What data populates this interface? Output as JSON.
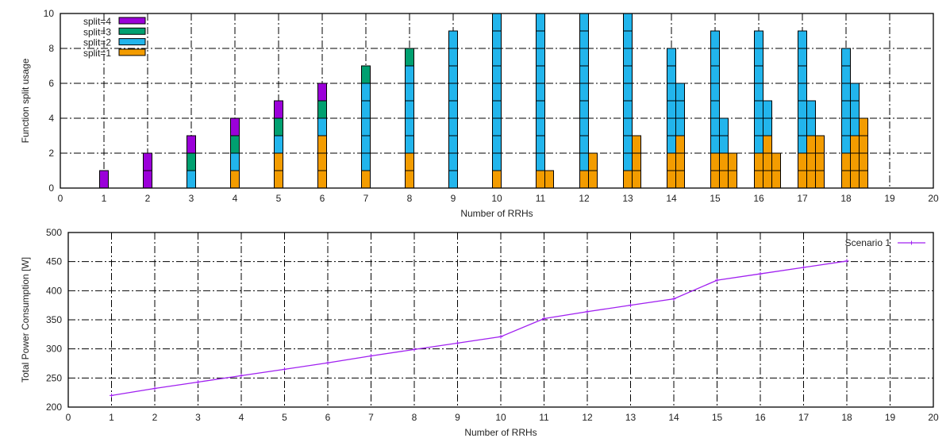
{
  "chart_data": [
    {
      "type": "bar",
      "stacked": true,
      "title": "",
      "xlabel": "Number of RRHs",
      "ylabel": "Function split usage",
      "xlim": [
        0,
        20
      ],
      "ylim": [
        0,
        10
      ],
      "xticks": [
        0,
        1,
        2,
        3,
        4,
        5,
        6,
        7,
        8,
        9,
        10,
        11,
        12,
        13,
        14,
        15,
        16,
        17,
        18,
        19,
        20
      ],
      "yticks": [
        0,
        2,
        4,
        6,
        8,
        10
      ],
      "grid": true,
      "legend_position": "top-left",
      "series_order": [
        "split=1",
        "split=2",
        "split=3",
        "split=4"
      ],
      "legend": [
        "split=4",
        "split=3",
        "split=2",
        "split=1"
      ],
      "colors": {
        "split=1": "#f39c00",
        "split=2": "#22b5ec",
        "split=3": "#00a070",
        "split=4": "#9b00d9"
      },
      "note_columns": "each group lists stacked columns as [split=1, split=2, split=3, split=4] counts",
      "groups": [
        {
          "x": 1,
          "columns": [
            [
              0,
              0,
              0,
              1
            ]
          ]
        },
        {
          "x": 2,
          "columns": [
            [
              0,
              0,
              0,
              2
            ]
          ]
        },
        {
          "x": 3,
          "columns": [
            [
              0,
              1,
              1,
              1
            ]
          ]
        },
        {
          "x": 4,
          "columns": [
            [
              1,
              1,
              1,
              1
            ]
          ]
        },
        {
          "x": 5,
          "columns": [
            [
              2,
              1,
              1,
              1
            ]
          ]
        },
        {
          "x": 6,
          "columns": [
            [
              3,
              1,
              1,
              1
            ]
          ]
        },
        {
          "x": 7,
          "columns": [
            [
              1,
              5,
              1,
              0
            ]
          ]
        },
        {
          "x": 8,
          "columns": [
            [
              2,
              5,
              1,
              0
            ]
          ]
        },
        {
          "x": 9,
          "columns": [
            [
              0,
              9,
              0,
              0
            ]
          ]
        },
        {
          "x": 10,
          "columns": [
            [
              1,
              9,
              0,
              0
            ]
          ]
        },
        {
          "x": 11,
          "columns": [
            [
              1,
              9,
              0,
              0
            ],
            [
              1,
              0,
              0,
              0
            ]
          ]
        },
        {
          "x": 12,
          "columns": [
            [
              1,
              9,
              0,
              0
            ],
            [
              2,
              0,
              0,
              0
            ]
          ]
        },
        {
          "x": 13,
          "columns": [
            [
              1,
              9,
              0,
              0
            ],
            [
              3,
              0,
              0,
              0
            ]
          ]
        },
        {
          "x": 14,
          "columns": [
            [
              2,
              6,
              0,
              0
            ],
            [
              3,
              3,
              0,
              0
            ]
          ]
        },
        {
          "x": 15,
          "columns": [
            [
              2,
              7,
              0,
              0
            ],
            [
              2,
              2,
              0,
              0
            ],
            [
              2,
              0,
              0,
              0
            ]
          ]
        },
        {
          "x": 16,
          "columns": [
            [
              2,
              7,
              0,
              0
            ],
            [
              3,
              2,
              0,
              0
            ],
            [
              2,
              0,
              0,
              0
            ]
          ]
        },
        {
          "x": 17,
          "columns": [
            [
              2,
              7,
              0,
              0
            ],
            [
              3,
              2,
              0,
              0
            ],
            [
              3,
              0,
              0,
              0
            ]
          ]
        },
        {
          "x": 18,
          "columns": [
            [
              2,
              6,
              0,
              0
            ],
            [
              3,
              3,
              0,
              0
            ],
            [
              4,
              0,
              0,
              0
            ]
          ]
        }
      ]
    },
    {
      "type": "line",
      "title": "",
      "xlabel": "Number of RRHs",
      "ylabel": "Total Power Consumption [W]",
      "xlim": [
        0,
        20
      ],
      "ylim": [
        200,
        500
      ],
      "xticks": [
        0,
        1,
        2,
        3,
        4,
        5,
        6,
        7,
        8,
        9,
        10,
        11,
        12,
        13,
        14,
        15,
        16,
        17,
        18,
        19,
        20
      ],
      "yticks": [
        200,
        250,
        300,
        350,
        400,
        450,
        500
      ],
      "grid": true,
      "legend_position": "top-right",
      "series": [
        {
          "name": "Scenario 1",
          "color": "#a020f0",
          "x": [
            1,
            2,
            3,
            4,
            5,
            6,
            7,
            8,
            9,
            10,
            11,
            12,
            13,
            14,
            15,
            16,
            17,
            18
          ],
          "y": [
            220,
            232,
            243,
            254,
            265,
            276,
            288,
            299,
            310,
            321,
            352,
            364,
            375,
            386,
            418,
            429,
            440,
            451
          ]
        }
      ]
    }
  ]
}
